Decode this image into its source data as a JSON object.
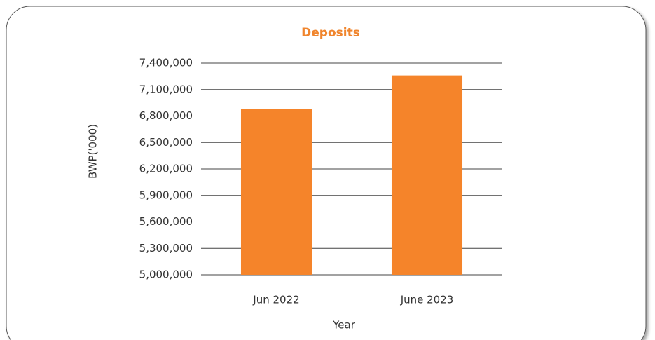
{
  "chart_data": {
    "type": "bar",
    "title": "Deposits",
    "x_label": "Year",
    "y_label": "BWP('000)",
    "categories": [
      "Jun 2022",
      "June 2023"
    ],
    "values": [
      6880000,
      7260000
    ],
    "color": "#f5842a",
    "ylim": [
      5000000,
      7400000
    ],
    "yticks": [
      {
        "value": 5000000,
        "label": "5,000,000"
      },
      {
        "value": 5300000,
        "label": "5,300,000"
      },
      {
        "value": 5600000,
        "label": "5,600,000"
      },
      {
        "value": 5900000,
        "label": "5,900,000"
      },
      {
        "value": 6200000,
        "label": "6,200,000"
      },
      {
        "value": 6500000,
        "label": "6,500,000"
      },
      {
        "value": 6800000,
        "label": "6,800,000"
      },
      {
        "value": 7100000,
        "label": "7,100,000"
      },
      {
        "value": 7400000,
        "label": "7,400,000"
      }
    ],
    "grid": true
  }
}
